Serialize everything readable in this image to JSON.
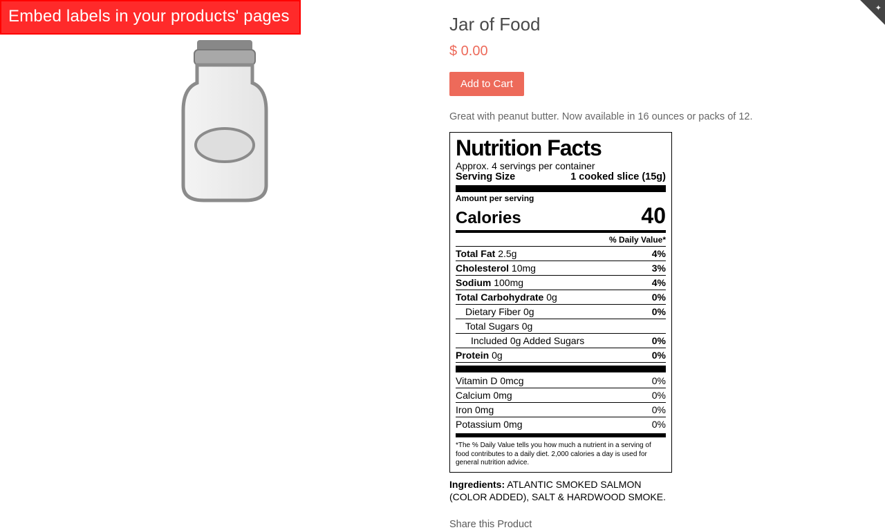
{
  "banner": {
    "text": "Embed labels in your products' pages"
  },
  "product": {
    "title": "Jar of Food",
    "price": "$ 0.00",
    "add_to_cart": "Add to Cart",
    "description": "Great with peanut butter. Now available in 16 ounces or packs of 12.",
    "share_label": "Share this Product"
  },
  "nutrition": {
    "heading": "Nutrition Facts",
    "servings_per": "Approx. 4 servings per container",
    "serving_size_label": "Serving Size",
    "serving_size_value": "1 cooked slice (15g)",
    "amount_per_serving": "Amount per serving",
    "calories_label": "Calories",
    "calories_value": "40",
    "dv_header": "% Daily Value*",
    "rows": [
      {
        "label_bold": "Total Fat",
        "amount": "2.5g",
        "dv": "4%",
        "indent": 0
      },
      {
        "label_bold": "Cholesterol",
        "amount": "10mg",
        "dv": "3%",
        "indent": 0
      },
      {
        "label_bold": "Sodium",
        "amount": "100mg",
        "dv": "4%",
        "indent": 0
      },
      {
        "label_bold": "Total Carbohydrate",
        "amount": "0g",
        "dv": "0%",
        "indent": 0
      },
      {
        "label_plain": "Dietary Fiber 0g",
        "dv": "0%",
        "indent": 1
      },
      {
        "label_plain": "Total Sugars 0g",
        "dv": "",
        "indent": 1
      },
      {
        "label_plain": "Included 0g Added Sugars",
        "dv": "0%",
        "indent": 2
      },
      {
        "label_bold": "Protein",
        "amount": "0g",
        "dv": "0%",
        "indent": 0,
        "after_bar": "thick"
      }
    ],
    "vitamins": [
      {
        "label": "Vitamin D 0mcg",
        "dv": "0%"
      },
      {
        "label": "Calcium 0mg",
        "dv": "0%"
      },
      {
        "label": "Iron 0mg",
        "dv": "0%"
      },
      {
        "label": "Potassium 0mg",
        "dv": "0%"
      }
    ],
    "footnote": "*The % Daily Value tells you how much a nutrient in a serving of food contributes to a daily diet. 2,000 calories a day is used for general nutrition advice.",
    "ingredients_label": "Ingredients:",
    "ingredients_text": "ATLANTIC SMOKED SALMON (COLOR ADDED), SALT & HARDWOOD SMOKE."
  },
  "colors": {
    "accent": "#ED6A5A",
    "banner_bg": "#ff2a2a",
    "text": "#494949"
  }
}
